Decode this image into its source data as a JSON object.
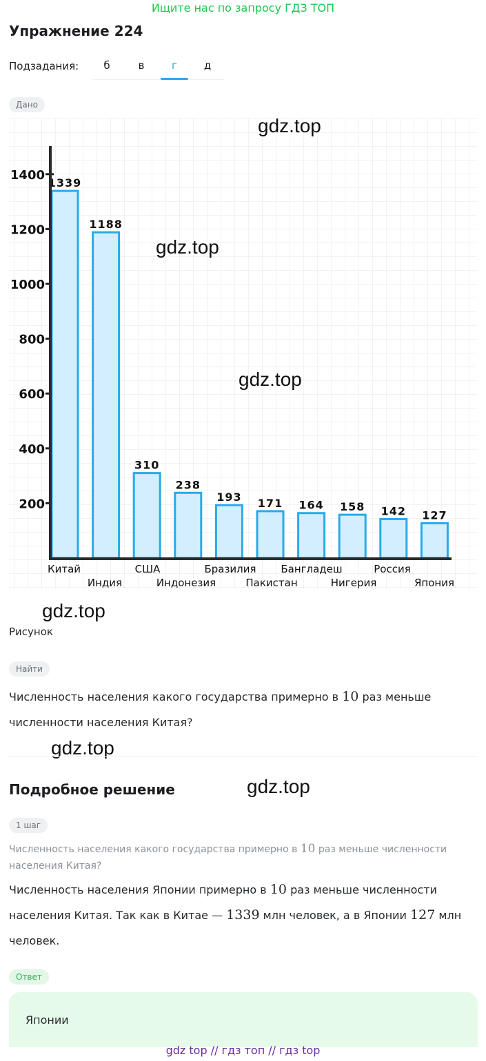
{
  "promo": "Ищите нас по запросу ГДЗ ТОП",
  "title": "Упражнение 224",
  "subtasks": {
    "label": "Подзадания:",
    "tabs": [
      "б",
      "в",
      "г",
      "д"
    ],
    "active_index": 2
  },
  "given_chip": "Дано",
  "figure_caption": "Рисунок",
  "watermark": "gdz.top",
  "find_chip": "Найти",
  "question": {
    "before": "Численность населения какого государства примерно в",
    "num": "10",
    "after": "раз меньше",
    "line2": "численности населения Китая?"
  },
  "solution": {
    "heading": "Подробное решение",
    "step_chip": "1 шаг",
    "step_question": {
      "before": "Численность населения какого государства примерно в",
      "num": "10",
      "after": "раз меньше численности",
      "line2": "населения Китая?"
    },
    "body": {
      "l1_before": "Численность населения Японии примерно в",
      "l1_num": "10",
      "l1_after": "раз меньше численности",
      "l2_before": "населения Китая. Так как в Китае —",
      "l2_num": "1339",
      "l2_mid": "млн человек, а в Японии",
      "l2_num2": "127",
      "l2_after": "млн",
      "l3": "человек."
    }
  },
  "answer_chip": "Ответ",
  "answer": "Японии",
  "footer": "gdz top  //  гдз топ  //  гдз top",
  "colors": {
    "accent_blue": "#3aa3e8",
    "bar_fill": "#d3efff",
    "bar_stroke": "#29aaea",
    "promo_green": "#1ec74a",
    "footer_purple": "#6a2a9c",
    "answer_bg": "#e6faea"
  },
  "chart_data": {
    "type": "bar",
    "categories": [
      "Китай",
      "Индия",
      "США",
      "Индонезия",
      "Бразилия",
      "Пакистан",
      "Бангладеш",
      "Нигерия",
      "Россия",
      "Япония"
    ],
    "values": [
      1339,
      1188,
      310,
      238,
      193,
      171,
      164,
      158,
      142,
      127
    ],
    "data_labels": [
      "1339",
      "1188",
      "310",
      "238",
      "193",
      "171",
      "164",
      "158",
      "142",
      "127"
    ],
    "yticks": [
      200,
      400,
      600,
      800,
      1000,
      1200,
      1400
    ],
    "ylim": [
      0,
      1500
    ],
    "grid": true,
    "title": "",
    "xlabel": "",
    "ylabel": ""
  }
}
